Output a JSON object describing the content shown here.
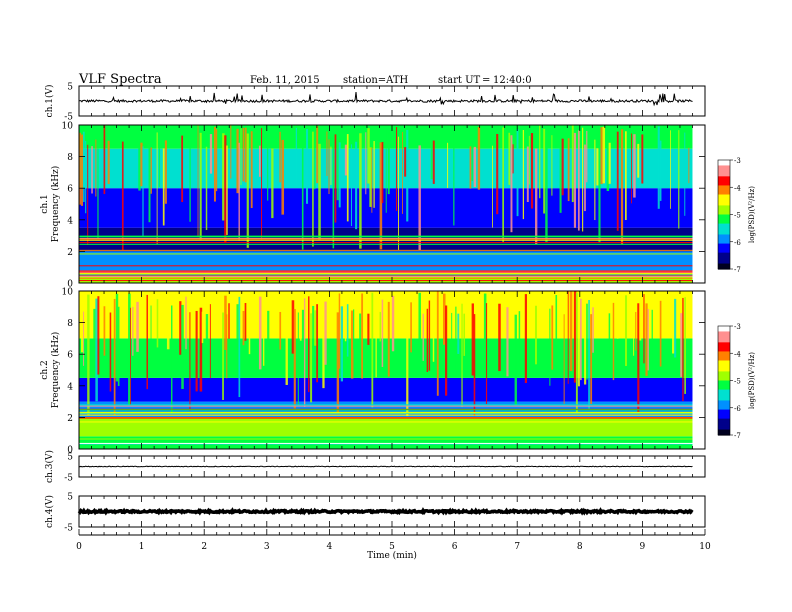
{
  "header": {
    "title": "VLF  Spectra",
    "date": "Feb. 11, 2015",
    "station": "station=ATH",
    "start_label": "start  UT",
    "start_eq": "=",
    "start_time": "12:40:0"
  },
  "colors": {
    "colormap": [
      "#000020",
      "#00008b",
      "#0000ff",
      "#0090ff",
      "#00e0d0",
      "#00ff40",
      "#a0ff00",
      "#ffff00",
      "#ff8000",
      "#ff0000",
      "#ff9090",
      "#ffffff"
    ],
    "trace": "#000000"
  },
  "chart_data": [
    {
      "type": "line",
      "panel": "ch1-waveform",
      "ylabel": "ch.1(V)",
      "ylim": [
        -5,
        5
      ],
      "y_ticks": [
        "5",
        "-5"
      ],
      "xlim": [
        0,
        10
      ],
      "baseline": 0,
      "noise_amplitude": 0.4,
      "spike_amplitude": 2
    },
    {
      "type": "heatmap",
      "panel": "ch1-spectrogram",
      "ylabel_channel": "ch.1",
      "ylabel": "Frequency  (kHz)",
      "ylim": [
        0,
        10
      ],
      "y_ticks": [
        "0",
        "2",
        "4",
        "6",
        "8",
        "10"
      ],
      "xlim": [
        0,
        10
      ],
      "data_end_min": 9.8,
      "colorbar": {
        "label": "log(PSD)(V²/Hz)",
        "range": [
          -7,
          -3
        ],
        "ticks": [
          "-3",
          "-4",
          "-5",
          "-6",
          "-7"
        ]
      },
      "bands": [
        {
          "f": [
            0.0,
            0.4
          ],
          "psd": -5.0
        },
        {
          "f": [
            0.4,
            0.8
          ],
          "psd": -3.6
        },
        {
          "f": [
            0.8,
            2.0
          ],
          "psd": -5.8
        },
        {
          "f": [
            2.0,
            3.5
          ],
          "psd": -6.6
        },
        {
          "f": [
            3.5,
            6.0
          ],
          "psd": -6.4
        },
        {
          "f": [
            6.0,
            8.5
          ],
          "psd": -5.6
        },
        {
          "f": [
            8.5,
            10.0
          ],
          "psd": -5.2
        }
      ]
    },
    {
      "type": "heatmap",
      "panel": "ch2-spectrogram",
      "ylabel_channel": "ch.2",
      "ylabel": "Frequency  (kHz)",
      "ylim": [
        0,
        10
      ],
      "y_ticks": [
        "0",
        "2",
        "4",
        "6",
        "8",
        "10"
      ],
      "xlim": [
        0,
        10
      ],
      "data_end_min": 9.8,
      "colorbar": {
        "label": "log(PSD)(V²/Hz)",
        "range": [
          -7,
          -3
        ],
        "ticks": [
          "-3",
          "-4",
          "-5",
          "-6",
          "-7"
        ]
      },
      "bands": [
        {
          "f": [
            0.0,
            0.8
          ],
          "psd": -5.2
        },
        {
          "f": [
            0.8,
            2.0
          ],
          "psd": -4.8
        },
        {
          "f": [
            2.0,
            3.0
          ],
          "psd": -5.9
        },
        {
          "f": [
            3.0,
            4.5
          ],
          "psd": -6.3
        },
        {
          "f": [
            4.5,
            7.0
          ],
          "psd": -5.3
        },
        {
          "f": [
            7.0,
            10.0
          ],
          "psd": -4.6
        }
      ]
    },
    {
      "type": "line",
      "panel": "ch3-waveform",
      "ylabel": "ch.3(V)",
      "ylim": [
        -5,
        5
      ],
      "y_ticks": [
        "5",
        "-5"
      ],
      "xlim": [
        0,
        10
      ],
      "baseline": 0,
      "noise_amplitude": 0.15,
      "spike_amplitude": 0
    },
    {
      "type": "line",
      "panel": "ch4-waveform",
      "ylabel": "ch.4(V)",
      "ylim": [
        -5,
        5
      ],
      "y_ticks": [
        "5",
        "-5"
      ],
      "xlim": [
        0,
        10
      ],
      "baseline": 0,
      "noise_amplitude": 0.3,
      "spike_amplitude": 0
    }
  ],
  "x_axis": {
    "label": "Time  (min)",
    "ticks": [
      "0",
      "1",
      "2",
      "3",
      "4",
      "5",
      "6",
      "7",
      "8",
      "9",
      "10"
    ]
  }
}
